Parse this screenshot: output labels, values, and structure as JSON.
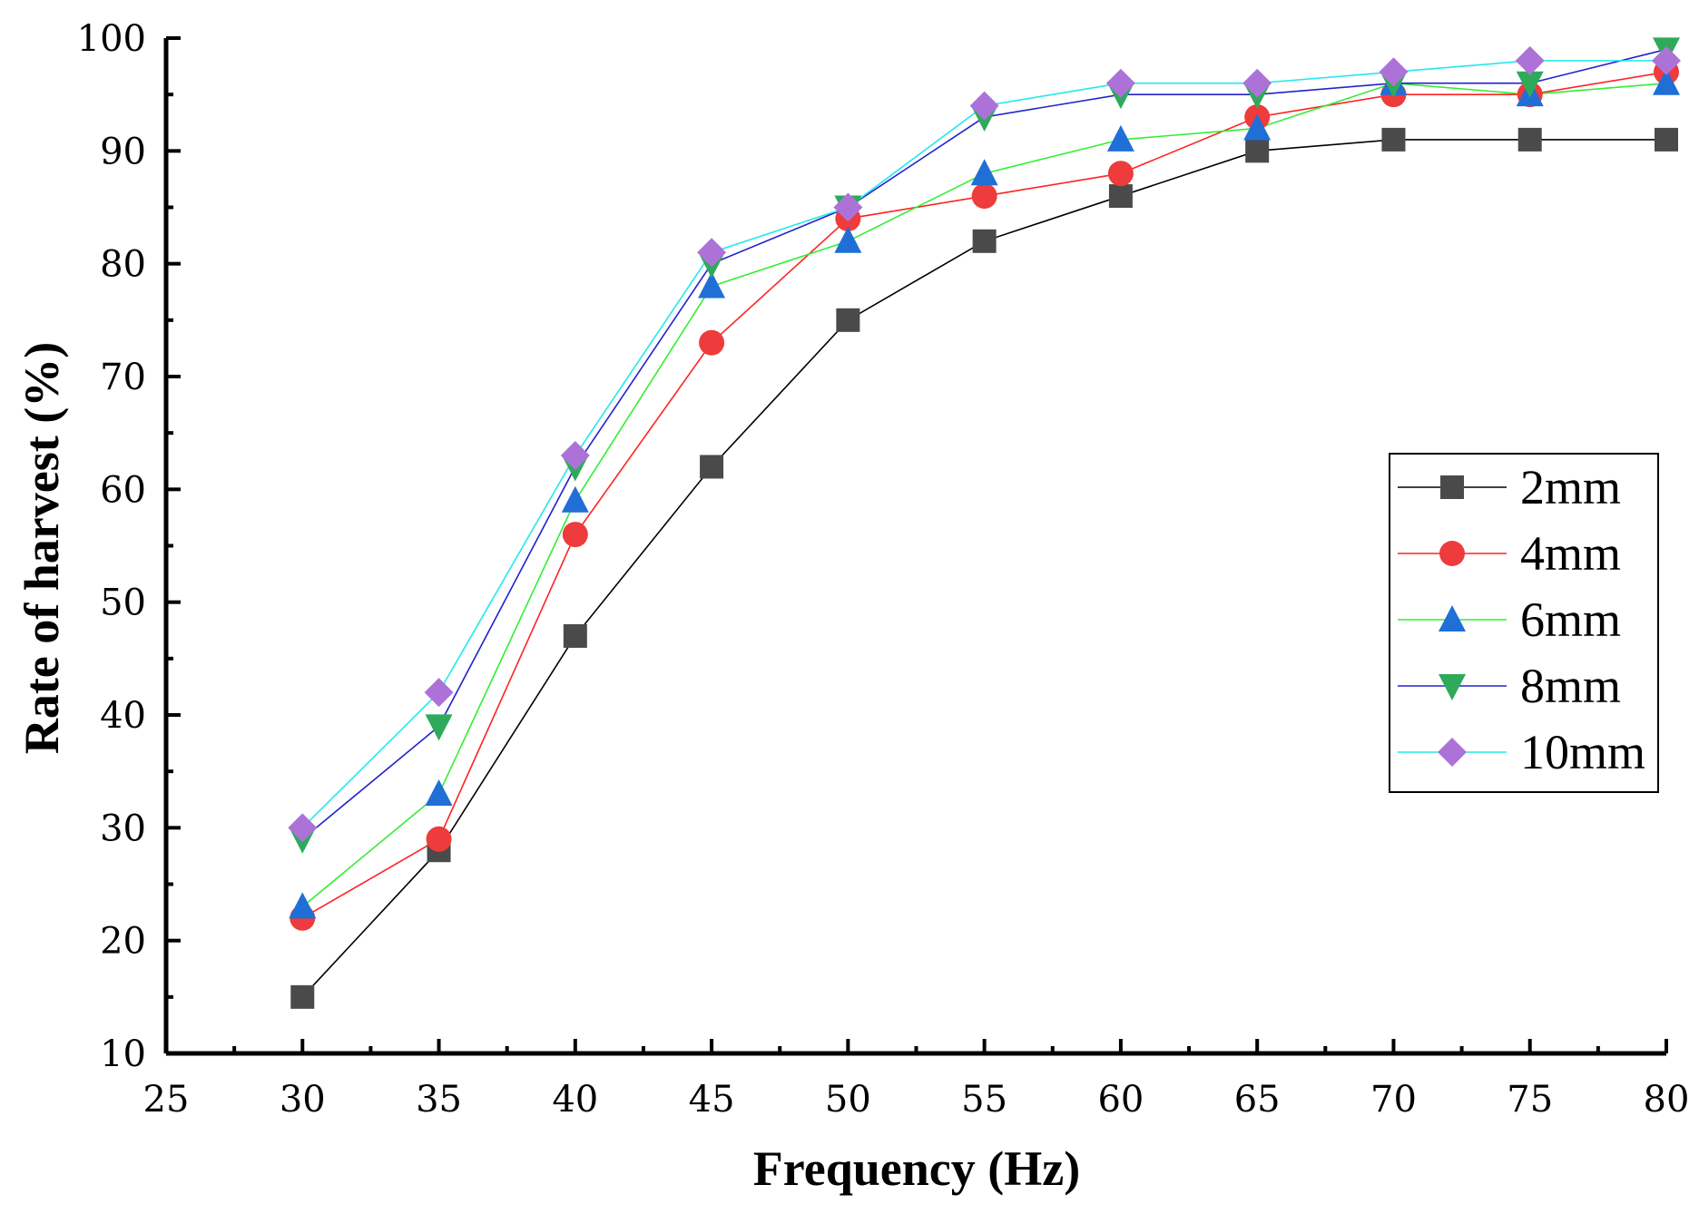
{
  "chart_data": {
    "type": "line",
    "title": "",
    "xlabel": "Frequency (Hz)",
    "ylabel": "Rate of harvest (%)",
    "xlim": [
      25,
      80
    ],
    "ylim": [
      10,
      100
    ],
    "x_ticks": [
      "25",
      "30",
      "35",
      "40",
      "45",
      "50",
      "55",
      "60",
      "65",
      "70",
      "75",
      "80"
    ],
    "y_ticks": [
      "10",
      "20",
      "30",
      "40",
      "50",
      "60",
      "70",
      "80",
      "90",
      "100"
    ],
    "x": [
      30,
      35,
      40,
      45,
      50,
      55,
      60,
      65,
      70,
      75,
      80
    ],
    "legend_position": "right",
    "series": [
      {
        "name": "2mm",
        "marker": "square",
        "line_color": "#000000",
        "marker_color": "#4a4a4a",
        "values": [
          15,
          28,
          47,
          62,
          75,
          82,
          86,
          90,
          91,
          91,
          91
        ]
      },
      {
        "name": "4mm",
        "marker": "circle",
        "line_color": "#ff2222",
        "marker_color": "#ee3b3b",
        "values": [
          22,
          29,
          56,
          73,
          84,
          86,
          88,
          93,
          95,
          95,
          97
        ]
      },
      {
        "name": "6mm",
        "marker": "triangle-up",
        "line_color": "#33ee33",
        "marker_color": "#1f6fd6",
        "values": [
          23,
          33,
          59,
          78,
          82,
          88,
          91,
          92,
          96,
          95,
          96
        ]
      },
      {
        "name": "8mm",
        "marker": "triangle-down",
        "line_color": "#2222cc",
        "marker_color": "#2faa5a",
        "values": [
          29,
          39,
          62,
          80,
          85,
          93,
          95,
          95,
          96,
          96,
          99
        ]
      },
      {
        "name": "10mm",
        "marker": "diamond",
        "line_color": "#22e8ee",
        "marker_color": "#ad72d8",
        "values": [
          30,
          42,
          63,
          81,
          85,
          94,
          96,
          96,
          97,
          98,
          98
        ]
      }
    ]
  }
}
